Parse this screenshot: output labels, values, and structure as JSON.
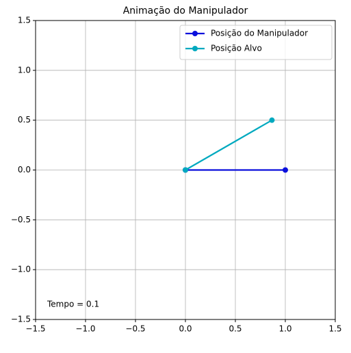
{
  "chart_data": {
    "type": "line",
    "title": "Animação do Manipulador",
    "series": [
      {
        "name": "Posição do Manipulador",
        "color": "#0a0fdc",
        "x": [
          0,
          1
        ],
        "values": [
          0,
          0
        ]
      },
      {
        "name": "Posição Alvo",
        "color": "#00a9bf",
        "x": [
          0,
          0.866
        ],
        "values": [
          0,
          0.5
        ]
      }
    ],
    "xlim": [
      -1.5,
      1.5
    ],
    "ylim": [
      -1.5,
      1.5
    ],
    "xticks": [
      {
        "value": -1.5,
        "label": "−1.5"
      },
      {
        "value": -1,
        "label": "−1.0"
      },
      {
        "value": -0.5,
        "label": "−0.5"
      },
      {
        "value": 0,
        "label": "0.0"
      },
      0.5,
      {
        "value": 1,
        "label": "1.0"
      },
      1.5
    ],
    "yticks": [
      {
        "value": -1.5,
        "label": "−1.5"
      },
      {
        "value": -1,
        "label": "−1.0"
      },
      {
        "value": -0.5,
        "label": "−0.5"
      },
      {
        "value": 0,
        "label": "0.0"
      },
      0.5,
      {
        "value": 1,
        "label": "1.0"
      },
      1.5
    ],
    "grid": true,
    "legend": "upper-right",
    "annotation": "Tempo = 0.1"
  }
}
